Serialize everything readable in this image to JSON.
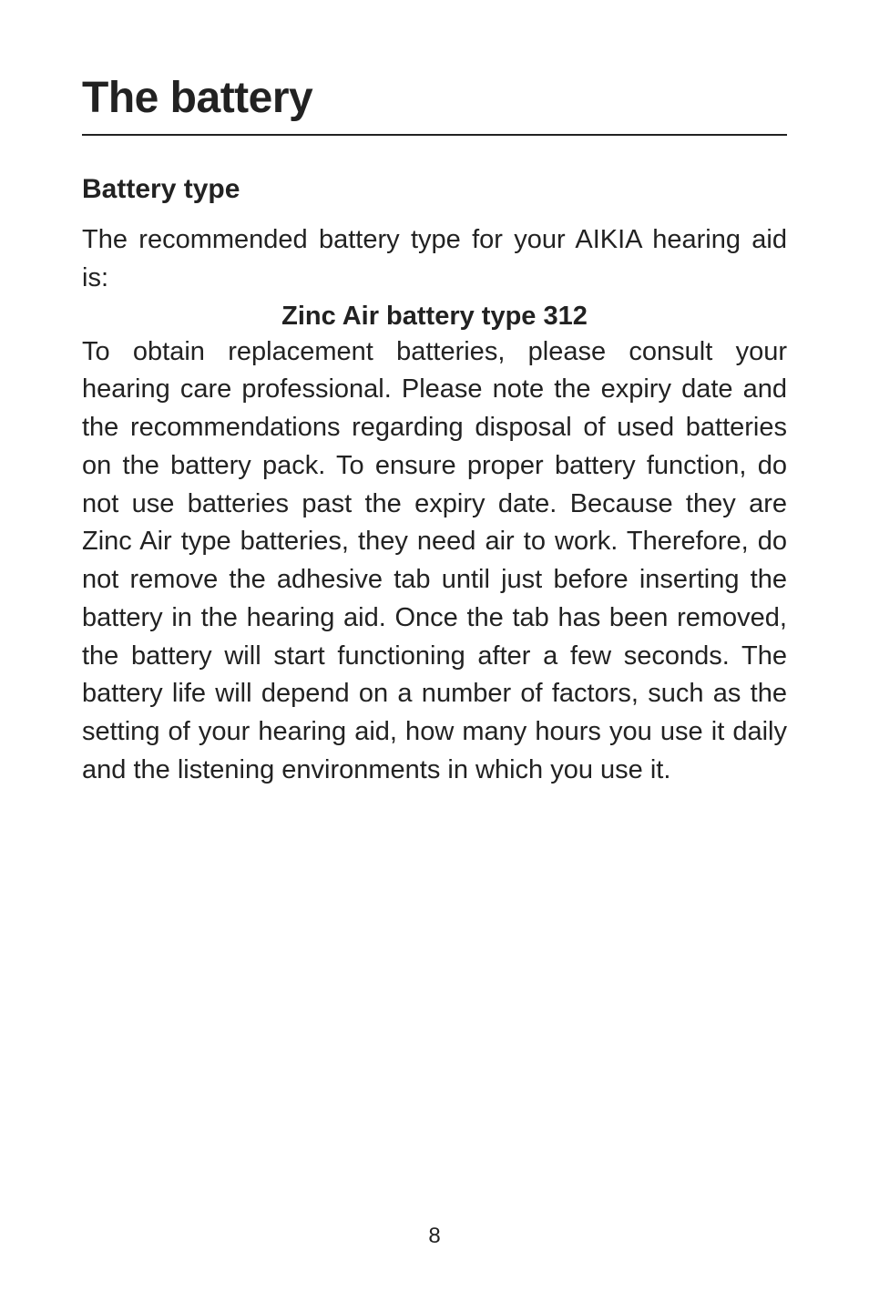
{
  "title": "The battery",
  "subhead": "Battery type",
  "intro": "The recommended battery type for your AIKIA hearing aid is:",
  "batteryLine": "Zinc Air battery type 312",
  "body": "To obtain replacement batteries, please consult your hearing care professional. Please note the expiry date and the recommendations regarding disposal of used batteries on the battery pack. To ensure proper battery function, do not use batteries past the expiry date. Because they are Zinc Air type batteries, they need air to work. Therefore, do not remove the adhesive tab until just before inserting the battery in the hearing aid. Once the tab has been removed, the battery will start functioning after a few seconds. The battery life will depend on a number of factors, such as the setting of your hearing aid, how many hours you use it daily and the listening environments in which you use it.",
  "pageNumber": "8",
  "colors": {
    "text": "#222222",
    "background": "#ffffff",
    "rule": "#222222"
  }
}
